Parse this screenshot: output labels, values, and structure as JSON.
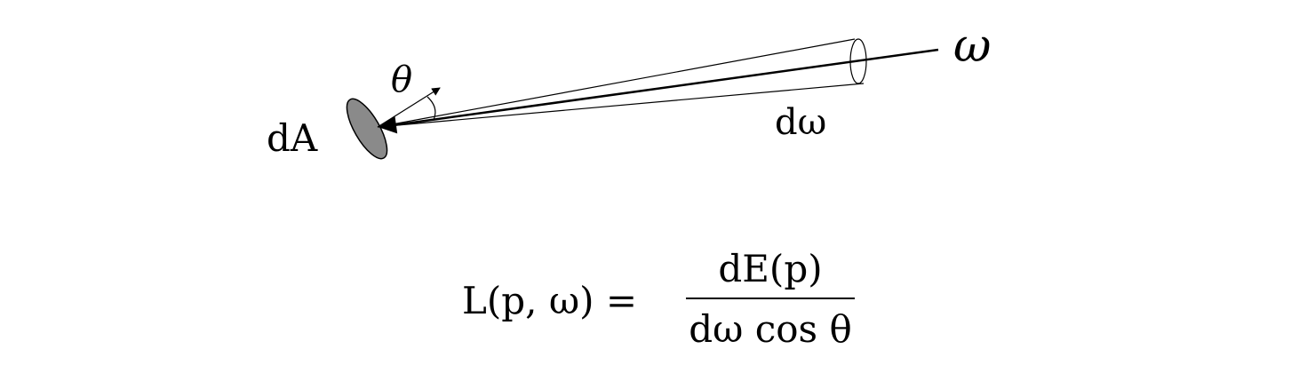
{
  "diagram": {
    "labels": {
      "theta": "θ",
      "dA": "dA",
      "domega": "dω",
      "omega": "ω"
    },
    "colors": {
      "surface_fill": "#8a8a8a",
      "stroke": "#000000"
    }
  },
  "equation": {
    "lhs": "L(p, ω) =",
    "numerator": "dE(p)",
    "denominator": "dω cos θ"
  }
}
